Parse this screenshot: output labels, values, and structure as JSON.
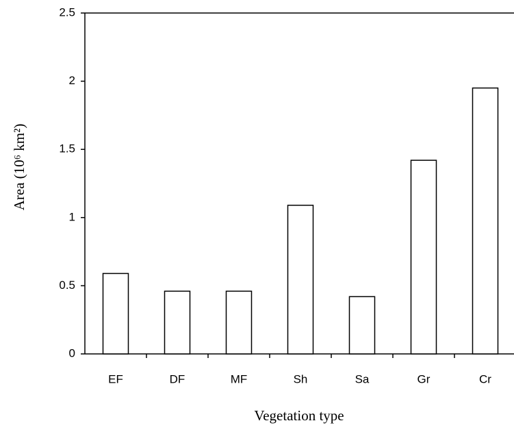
{
  "chart_data": {
    "type": "bar",
    "x_label": "Vegetation type",
    "y_label": "Area (10⁶ km²)",
    "categories": [
      "EF",
      "DF",
      "MF",
      "Sh",
      "Sa",
      "Gr",
      "Cr"
    ],
    "values": [
      0.59,
      0.46,
      0.46,
      1.09,
      0.42,
      1.42,
      1.95
    ],
    "color": "#ffffff",
    "ylim": [
      0,
      2.5
    ],
    "yticks": [
      0,
      0.5,
      1,
      1.5,
      2,
      2.5
    ],
    "grid": false
  }
}
